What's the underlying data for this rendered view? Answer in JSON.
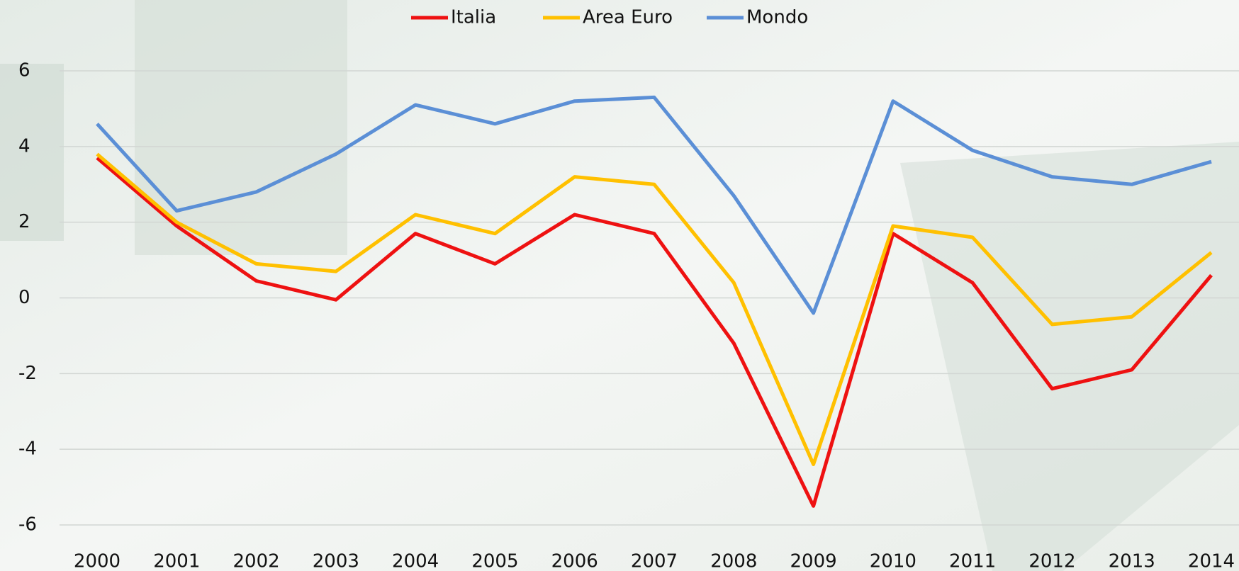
{
  "chart_data": {
    "type": "line",
    "categories": [
      "2000",
      "2001",
      "2002",
      "2003",
      "2004",
      "2005",
      "2006",
      "2007",
      "2008",
      "2009",
      "2010",
      "2011",
      "2012",
      "2013",
      "2014"
    ],
    "series": [
      {
        "name": "Italia",
        "color": "#ee1111",
        "values": [
          3.7,
          1.9,
          0.45,
          -0.05,
          1.7,
          0.9,
          2.2,
          1.7,
          -1.2,
          -5.5,
          1.7,
          0.4,
          -2.4,
          -1.9,
          0.6
        ]
      },
      {
        "name": "Area Euro",
        "color": "#ffc000",
        "values": [
          3.8,
          2.0,
          0.9,
          0.7,
          2.2,
          1.7,
          3.2,
          3.0,
          0.4,
          -4.4,
          1.9,
          1.6,
          -0.7,
          -0.5,
          1.2
        ]
      },
      {
        "name": "Mondo",
        "color": "#5b8fd6",
        "values": [
          4.6,
          2.3,
          2.8,
          3.8,
          5.1,
          4.6,
          5.2,
          5.3,
          2.7,
          -0.4,
          5.2,
          3.9,
          3.2,
          3.0,
          3.6
        ]
      }
    ],
    "ylim": [
      -6,
      6
    ],
    "yticks": [
      -6,
      -4,
      -2,
      0,
      2,
      4,
      6
    ],
    "grid": true,
    "legend": "top"
  }
}
